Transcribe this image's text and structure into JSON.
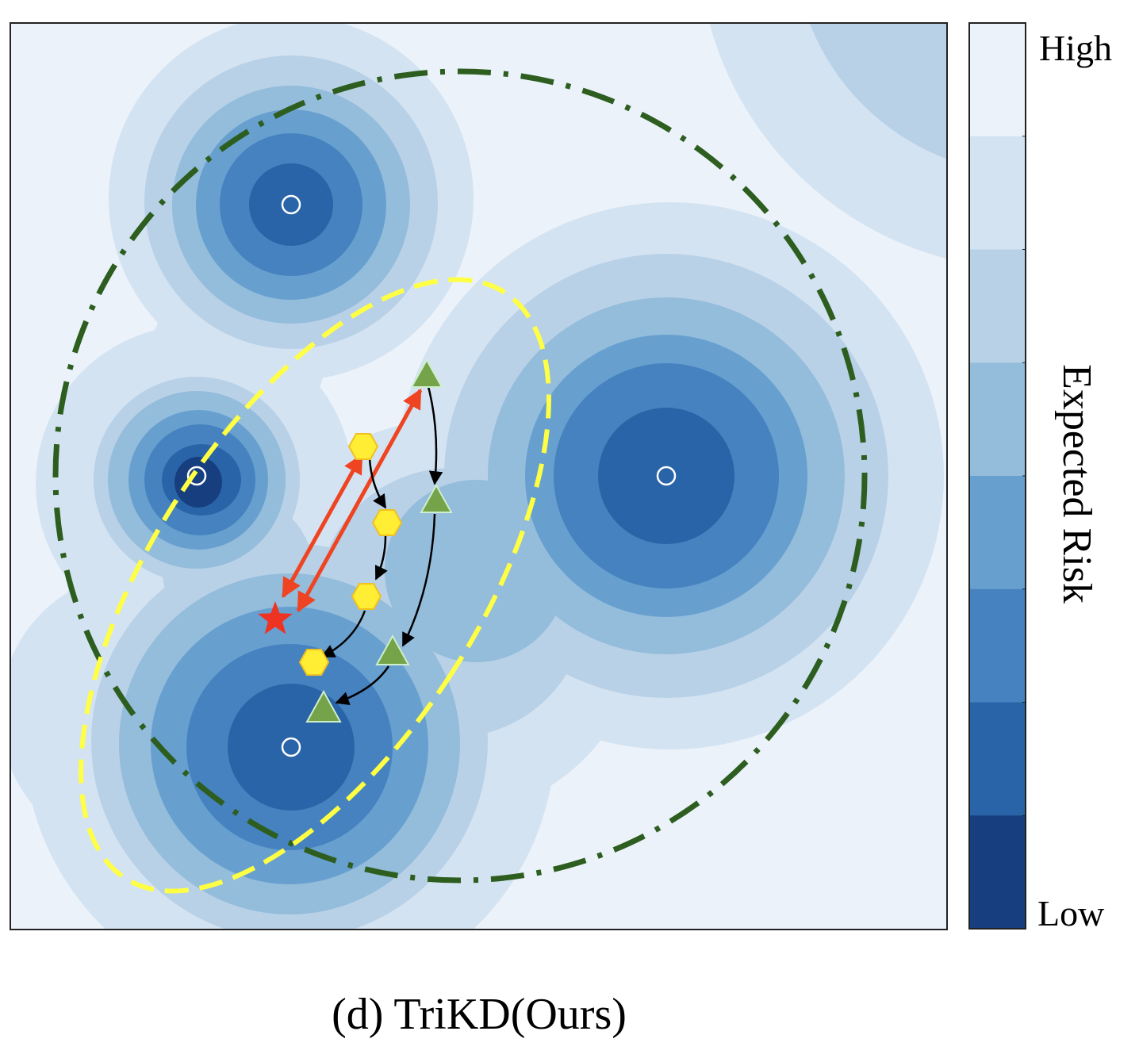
{
  "caption": "(d) TriKD(Ours)",
  "colorbar": {
    "title": "Expected Risk",
    "high_label": "High",
    "low_label": "Low",
    "levels": [
      "#ebf2fa",
      "#d4e3f2",
      "#b8d1e7",
      "#94bcdb",
      "#67a0cf",
      "#4682bf",
      "#2a64a8",
      "#173f80"
    ]
  },
  "colors": {
    "minima_marker": "#ffffff",
    "outer_region": "#2d5e1f",
    "inner_region": "#ffff44",
    "hexagon_fill": "#ffee33",
    "hexagon_stroke": "#f0c020",
    "triangle_fill": "#74a34a",
    "triangle_stroke": "#cfeecb",
    "star": "#ee3322",
    "mutual_arrow": "#ee4422",
    "path_arrow": "#000000"
  }
}
